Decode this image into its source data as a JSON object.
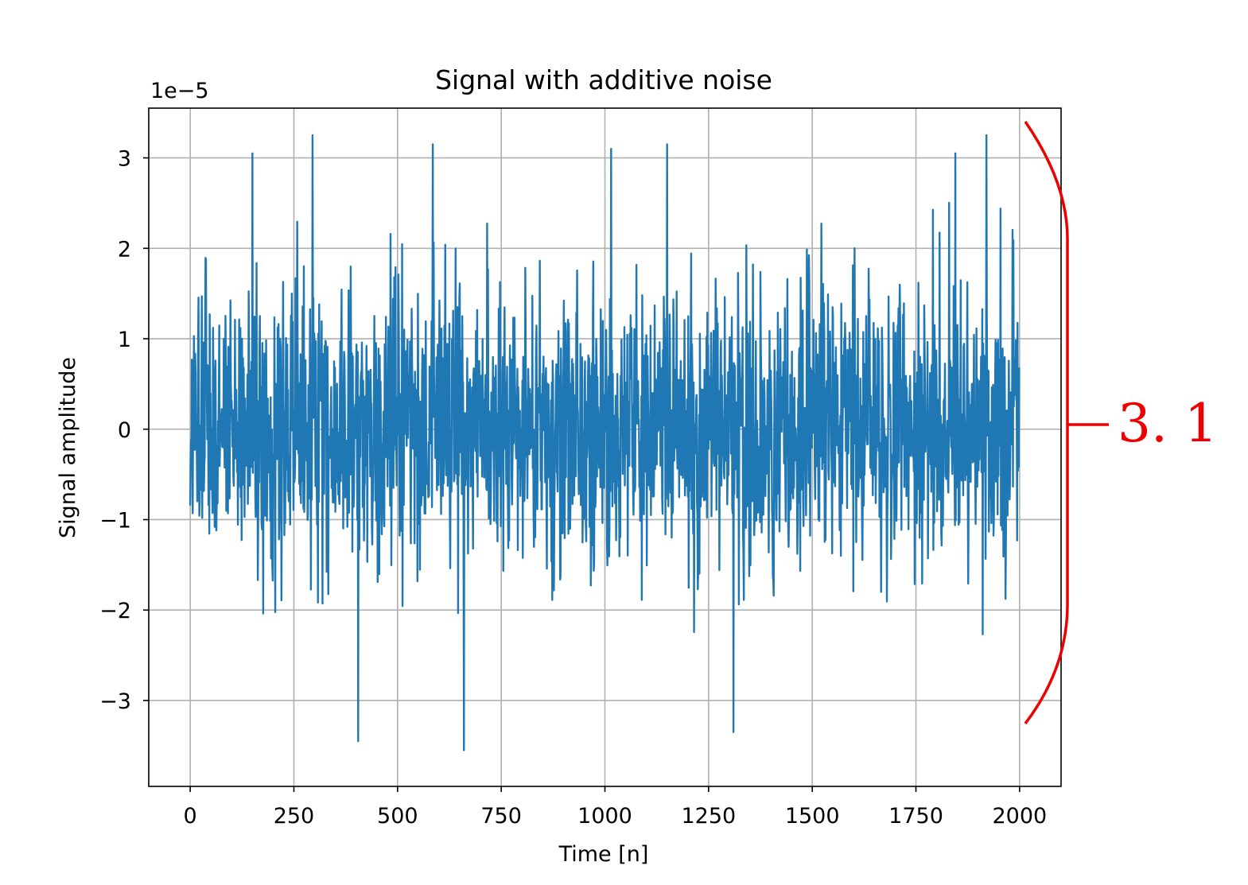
{
  "chart_data": {
    "type": "line",
    "title": "Signal with additive noise",
    "xlabel": "Time [n]",
    "ylabel": "Signal amplitude",
    "offset_text": "1e−5",
    "xlim": [
      -100,
      2100
    ],
    "ylim": [
      -3.95,
      3.55
    ],
    "x_ticks": [
      0,
      250,
      500,
      750,
      1000,
      1250,
      1500,
      1750,
      2000
    ],
    "x_tick_labels": [
      "0",
      "250",
      "500",
      "750",
      "1000",
      "1250",
      "1500",
      "1750",
      "2000"
    ],
    "y_ticks": [
      -3,
      -2,
      -1,
      0,
      1,
      2,
      3
    ],
    "y_tick_labels": [
      "−3",
      "−2",
      "−1",
      "0",
      "1",
      "2",
      "3"
    ],
    "grid": true,
    "series": [
      {
        "color": "#1f77b4",
        "n_points": 2000,
        "x_start": 0,
        "x_end": 1999,
        "envelope_max": 3.3,
        "envelope_min": -3.55,
        "peaks": [
          {
            "x": 150,
            "y": 3.05
          },
          {
            "x": 295,
            "y": 3.25
          },
          {
            "x": 405,
            "y": -3.45
          },
          {
            "x": 585,
            "y": 3.15
          },
          {
            "x": 660,
            "y": -3.55
          },
          {
            "x": 1015,
            "y": 3.1
          },
          {
            "x": 1150,
            "y": 3.15
          },
          {
            "x": 1310,
            "y": -3.35
          },
          {
            "x": 1845,
            "y": 3.05
          },
          {
            "x": 1920,
            "y": 3.25
          }
        ]
      }
    ],
    "annotation": {
      "text": "3. 1",
      "color": "#ee0000"
    }
  }
}
